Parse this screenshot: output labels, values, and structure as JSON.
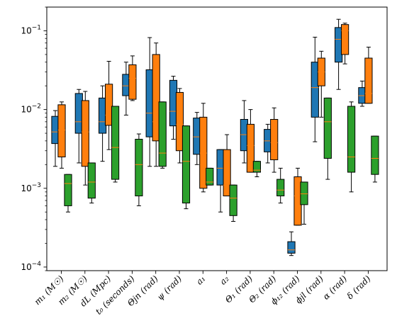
{
  "chart_data": {
    "type": "box",
    "title": "",
    "xlabel": "",
    "ylabel": "",
    "yscale": "log",
    "ylim": [
      9e-05,
      0.2
    ],
    "y_ticks": [
      {
        "value": 0.0001,
        "base": "10",
        "exp": "−4"
      },
      {
        "value": 0.001,
        "base": "10",
        "exp": "−3"
      },
      {
        "value": 0.01,
        "base": "10",
        "exp": "−2"
      },
      {
        "value": 0.1,
        "base": "10",
        "exp": "−1"
      }
    ],
    "categories": [
      "m₁ (M☉)",
      "m₂ (M☉)",
      "dL (Mpc)",
      "t₀ (seconds)",
      "Θjn (rad)",
      "ψ (rad)",
      "a₁",
      "a₂",
      "Θ₁ (rad)",
      "Θ₂ (rad)",
      "ϕ₁₂ (rad)",
      "ϕjl (rad)",
      "α (rad)",
      "δ (rad)"
    ],
    "series": [
      {
        "color": "#1f77b4",
        "boxes": [
          {
            "whislo": 0.0019,
            "q1": 0.0037,
            "med": 0.0052,
            "q3": 0.0082,
            "whishi": 0.0097
          },
          {
            "whislo": 0.0021,
            "q1": 0.005,
            "med": 0.007,
            "q3": 0.016,
            "whishi": 0.018
          },
          {
            "whislo": 0.0022,
            "q1": 0.005,
            "med": 0.007,
            "q3": 0.014,
            "whishi": 0.02
          },
          {
            "whislo": 0.0085,
            "q1": 0.015,
            "med": 0.02,
            "q3": 0.028,
            "whishi": 0.04
          },
          {
            "whislo": 0.0019,
            "q1": 0.0045,
            "med": 0.009,
            "q3": 0.032,
            "whishi": 0.082
          },
          {
            "whislo": 0.0042,
            "q1": 0.0062,
            "med": 0.0095,
            "q3": 0.0235,
            "whishi": 0.0265
          },
          {
            "whislo": 0.002,
            "q1": 0.0027,
            "med": 0.0045,
            "q3": 0.0078,
            "whishi": 0.0092
          },
          {
            "whislo": 0.0005,
            "q1": 0.0011,
            "med": 0.0018,
            "q3": 0.0031,
            "whishi": 0.0031
          },
          {
            "whislo": 0.0021,
            "q1": 0.003,
            "med": 0.0048,
            "q3": 0.0075,
            "whishi": 0.013
          },
          {
            "whislo": 0.0021,
            "q1": 0.0029,
            "med": 0.004,
            "q3": 0.0056,
            "whishi": 0.0065
          },
          {
            "whislo": 0.00014,
            "q1": 0.00015,
            "med": 0.000165,
            "q3": 0.00021,
            "whishi": 0.00028
          },
          {
            "whislo": 0.0039,
            "q1": 0.008,
            "med": 0.019,
            "q3": 0.04,
            "whishi": 0.083
          },
          {
            "whislo": 0.018,
            "q1": 0.04,
            "med": 0.078,
            "q3": 0.11,
            "whishi": 0.14
          },
          {
            "whislo": 0.011,
            "q1": 0.012,
            "med": 0.015,
            "q3": 0.019,
            "whishi": 0.023
          }
        ]
      },
      {
        "color": "#ff7f0e",
        "boxes": [
          {
            "whislo": 0.0018,
            "q1": 0.0025,
            "med": 0.0055,
            "q3": 0.0115,
            "whishi": 0.0125
          },
          {
            "whislo": 0.0011,
            "q1": 0.0019,
            "med": 0.0052,
            "q3": 0.013,
            "whishi": 0.017
          },
          {
            "whislo": 0.0031,
            "q1": 0.0063,
            "med": 0.0085,
            "q3": 0.021,
            "whishi": 0.041
          },
          {
            "whislo": 0.013,
            "q1": 0.0135,
            "med": 0.025,
            "q3": 0.037,
            "whishi": 0.048
          },
          {
            "whislo": 0.0019,
            "q1": 0.004,
            "med": 0.007,
            "q3": 0.05,
            "whishi": 0.07
          },
          {
            "whislo": 0.0021,
            "q1": 0.003,
            "med": 0.0065,
            "q3": 0.0165,
            "whishi": 0.0185
          },
          {
            "whislo": 0.0009,
            "q1": 0.001,
            "med": 0.0028,
            "q3": 0.008,
            "whishi": 0.012
          },
          {
            "whislo": 0.0008,
            "q1": 0.0008,
            "med": 0.0011,
            "q3": 0.0031,
            "whishi": 0.0048
          },
          {
            "whislo": 0.0016,
            "q1": 0.0016,
            "med": 0.0035,
            "q3": 0.0065,
            "whishi": 0.01
          },
          {
            "whislo": 0.0016,
            "q1": 0.0023,
            "med": 0.0038,
            "q3": 0.0075,
            "whishi": 0.0105
          },
          {
            "whislo": 0.00034,
            "q1": 0.00034,
            "med": 0.0008,
            "q3": 0.0014,
            "whishi": 0.0018
          },
          {
            "whislo": 0.008,
            "q1": 0.02,
            "med": 0.03,
            "q3": 0.045,
            "whishi": 0.055
          },
          {
            "whislo": 0.038,
            "q1": 0.05,
            "med": 0.1,
            "q3": 0.12,
            "whishi": 0.125
          },
          {
            "whislo": 0.012,
            "q1": 0.012,
            "med": 0.016,
            "q3": 0.045,
            "whishi": 0.062
          }
        ]
      },
      {
        "color": "#2ca02c",
        "boxes": [
          {
            "whislo": 0.0005,
            "q1": 0.0006,
            "med": 0.00115,
            "q3": 0.0015,
            "whishi": 0.0015
          },
          {
            "whislo": 0.00065,
            "q1": 0.00075,
            "med": 0.0012,
            "q3": 0.0021,
            "whishi": 0.0021
          },
          {
            "whislo": 0.0012,
            "q1": 0.0013,
            "med": 0.0033,
            "q3": 0.011,
            "whishi": 0.011
          },
          {
            "whislo": 0.0006,
            "q1": 0.0008,
            "med": 0.002,
            "q3": 0.0042,
            "whishi": 0.0049
          },
          {
            "whislo": 0.0018,
            "q1": 0.0019,
            "med": 0.0028,
            "q3": 0.0125,
            "whishi": 0.0125
          },
          {
            "whislo": 0.00055,
            "q1": 0.00065,
            "med": 0.0022,
            "q3": 0.0062,
            "whishi": 0.0062
          },
          {
            "whislo": 0.0011,
            "q1": 0.0011,
            "med": 0.0012,
            "q3": 0.0018,
            "whishi": 0.0018
          },
          {
            "whislo": 0.00038,
            "q1": 0.00045,
            "med": 0.00075,
            "q3": 0.0011,
            "whishi": 0.0011
          },
          {
            "whislo": 0.0014,
            "q1": 0.0016,
            "med": 0.0017,
            "q3": 0.0022,
            "whishi": 0.0022
          },
          {
            "whislo": 0.00065,
            "q1": 0.0008,
            "med": 0.00095,
            "q3": 0.0013,
            "whishi": 0.0018
          },
          {
            "whislo": 0.00035,
            "q1": 0.00062,
            "med": 0.00085,
            "q3": 0.0012,
            "whishi": 0.0012
          },
          {
            "whislo": 0.0013,
            "q1": 0.0024,
            "med": 0.007,
            "q3": 0.014,
            "whishi": 0.014
          },
          {
            "whislo": 0.0009,
            "q1": 0.0016,
            "med": 0.0025,
            "q3": 0.011,
            "whishi": 0.0125
          },
          {
            "whislo": 0.0012,
            "q1": 0.0015,
            "med": 0.0024,
            "q3": 0.0046,
            "whishi": 0.0046
          }
        ]
      }
    ],
    "median_color": "#ff7f0e",
    "grid": false,
    "legend": "none"
  }
}
